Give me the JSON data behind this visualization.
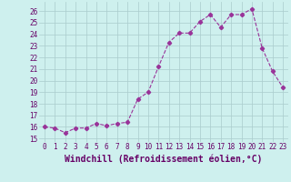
{
  "x": [
    0,
    1,
    2,
    3,
    4,
    5,
    6,
    7,
    8,
    9,
    10,
    11,
    12,
    13,
    14,
    15,
    16,
    17,
    18,
    19,
    20,
    21,
    22,
    23
  ],
  "y": [
    16.0,
    15.9,
    15.5,
    15.9,
    15.9,
    16.3,
    16.1,
    16.3,
    16.4,
    18.4,
    19.0,
    21.2,
    23.3,
    24.1,
    24.1,
    25.1,
    25.7,
    24.6,
    25.7,
    25.7,
    26.2,
    22.8,
    20.8,
    19.4
  ],
  "line_color": "#993399",
  "marker": "D",
  "marker_size": 2.2,
  "line_width": 0.8,
  "xlabel": "Windchill (Refroidissement éolien,°C)",
  "ylabel_ticks": [
    15,
    16,
    17,
    18,
    19,
    20,
    21,
    22,
    23,
    24,
    25,
    26
  ],
  "ylim": [
    14.7,
    26.8
  ],
  "xlim": [
    -0.5,
    23.5
  ],
  "background_color": "#cef0ee",
  "grid_color": "#aacccc",
  "tick_label_color": "#660066",
  "xlabel_color": "#660066",
  "tick_fontsize": 5.5,
  "xlabel_fontsize": 7.0
}
